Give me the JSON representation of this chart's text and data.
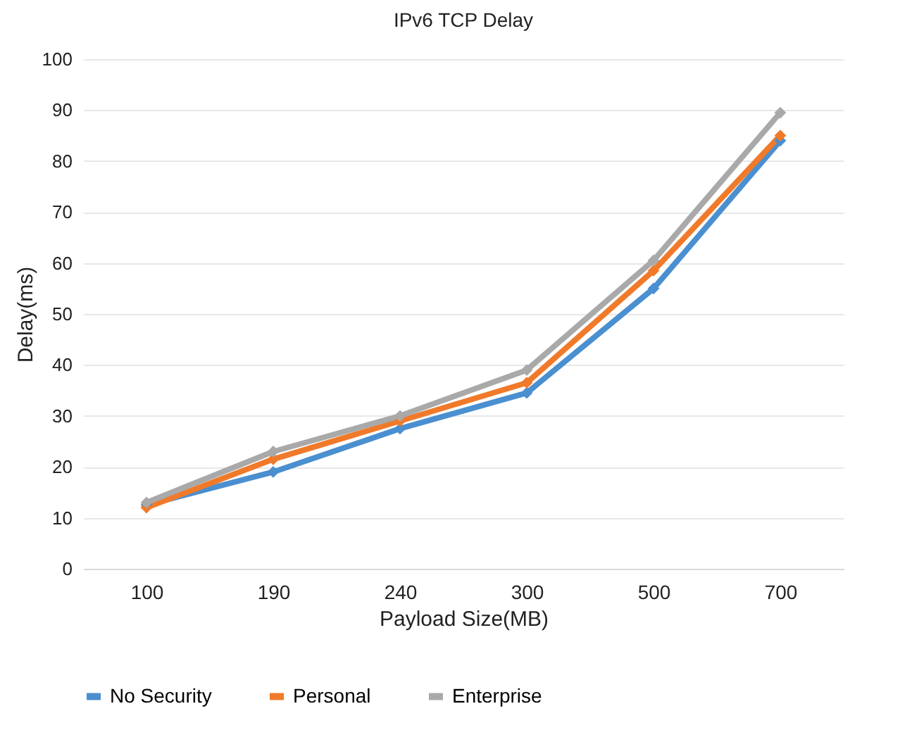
{
  "chart_data": {
    "type": "line",
    "title": "IPv6 TCP Delay",
    "xlabel": "Payload Size(MB)",
    "ylabel": "Delay(ms)",
    "categories": [
      "100",
      "190",
      "240",
      "300",
      "500",
      "700"
    ],
    "series": [
      {
        "name": "No Security",
        "color": "#4a8fd0",
        "values": [
          12.5,
          19,
          27.5,
          34.5,
          55,
          84
        ]
      },
      {
        "name": "Personal",
        "color": "#f07a2a",
        "values": [
          12,
          21.5,
          29,
          36.5,
          58.5,
          85
        ]
      },
      {
        "name": "Enterprise",
        "color": "#a9a9a9",
        "values": [
          13,
          23,
          30,
          39,
          60.5,
          89.5
        ]
      }
    ],
    "ylim": [
      0,
      100
    ],
    "yticks": [
      0,
      10,
      20,
      30,
      40,
      50,
      60,
      70,
      80,
      90,
      100
    ],
    "grid": "y",
    "legend": "bottom",
    "marker": "diamond",
    "line_style": "solid"
  }
}
